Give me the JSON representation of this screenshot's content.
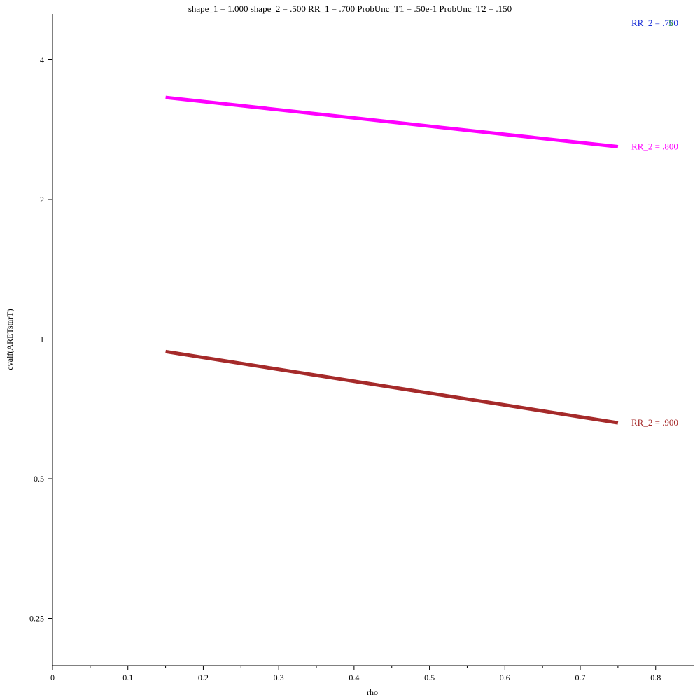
{
  "chart_data": {
    "type": "line",
    "title": "shape_1 = 1.000  shape_2 = .500  RR_1 = .700  ProbUnc_T1 = .50e-1  ProbUnc_T2 = .150",
    "xlabel": "rho",
    "ylabel": "evalf(ARETstarT)",
    "y_scale": "log",
    "xlim": [
      0,
      0.85
    ],
    "ylim": [
      0.2,
      4.8
    ],
    "x_ticks": [
      0,
      0.1,
      0.2,
      0.3,
      0.4,
      0.5,
      0.6,
      0.7,
      0.8
    ],
    "x_tick_labels": [
      "0",
      "0.1",
      "0.2",
      "0.3",
      "0.4",
      "0.5",
      "0.6",
      "0.7",
      "0.8"
    ],
    "y_ticks": [
      0.25,
      0.5,
      1,
      2,
      4
    ],
    "y_tick_labels": [
      "0.25",
      "0.5",
      "1",
      "2",
      "4"
    ],
    "reference_line": {
      "y": 1,
      "color": "#a6a6a6"
    },
    "grid": false,
    "series": [
      {
        "name": "RR_2 = .700",
        "label_display": "RR_2 = .700",
        "overlap_text": "5",
        "color": "#1a2fd6",
        "overlap_color": "#2ca02c",
        "x": [],
        "y": []
      },
      {
        "name": "RR_2 = .800",
        "color": "#ff00ff",
        "x": [
          0.15,
          0.75
        ],
        "y": [
          3.32,
          2.6
        ]
      },
      {
        "name": "RR_2 = .900",
        "color": "#a52a2a",
        "x": [
          0.15,
          0.75
        ],
        "y": [
          0.94,
          0.66
        ]
      }
    ]
  }
}
